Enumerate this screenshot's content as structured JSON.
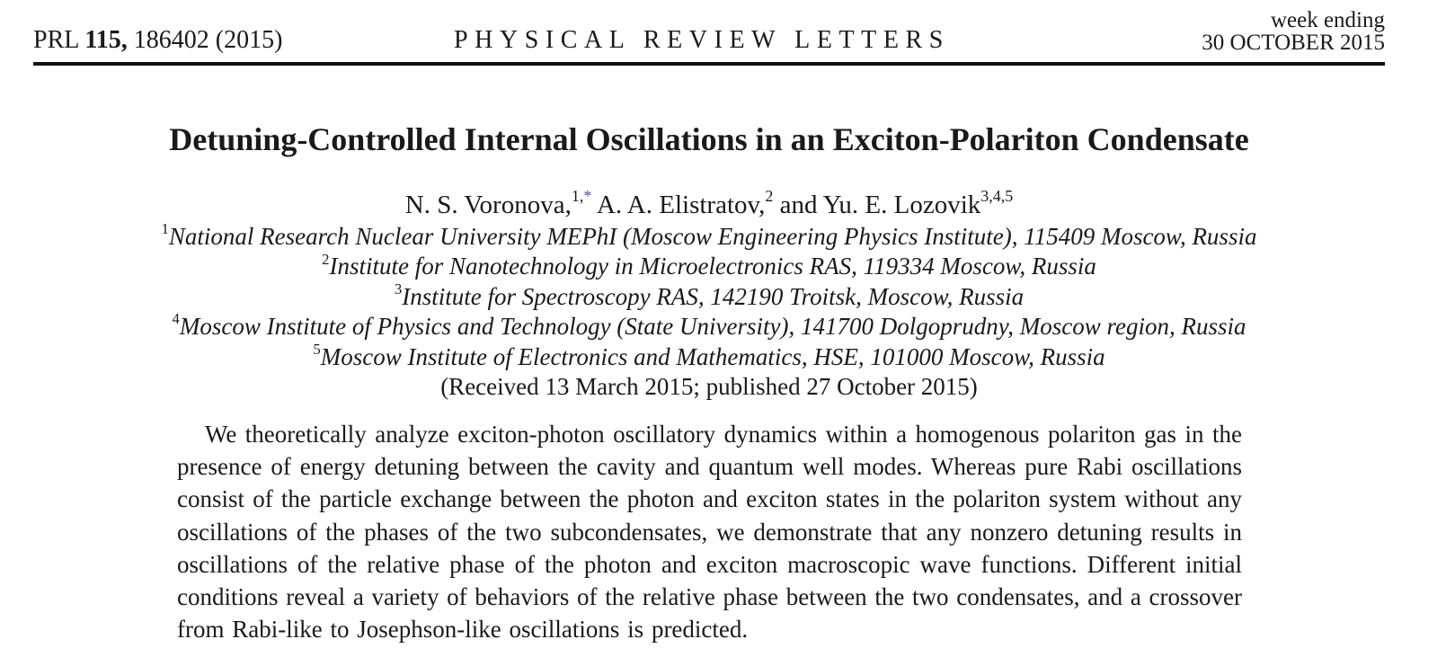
{
  "header": {
    "journal_prefix": "PRL",
    "volume": "115,",
    "citation": "186402 (2015)",
    "journal": "PHYSICAL REVIEW LETTERS",
    "week_label": "week ending",
    "date": "30 OCTOBER 2015"
  },
  "title": "Detuning-Controlled Internal Oscillations in an Exciton-Polariton Condensate",
  "authors": [
    {
      "name": "N. S. Voronova,",
      "sup": "1,",
      "note": "*"
    },
    {
      "name": "A. A. Elistratov,",
      "sup": "2"
    },
    {
      "conjunction": "and"
    },
    {
      "name": "Yu. E. Lozovik",
      "sup": "3,4,5"
    }
  ],
  "affiliations": [
    {
      "sup": "1",
      "text": "National Research Nuclear University MEPhI (Moscow Engineering Physics Institute), 115409 Moscow, Russia"
    },
    {
      "sup": "2",
      "text": "Institute for Nanotechnology in Microelectronics RAS, 119334 Moscow, Russia"
    },
    {
      "sup": "3",
      "text": "Institute for Spectroscopy RAS, 142190 Troitsk, Moscow, Russia"
    },
    {
      "sup": "4",
      "text": "Moscow Institute of Physics and Technology (State University), 141700 Dolgoprudny, Moscow region, Russia"
    },
    {
      "sup": "5",
      "text": "Moscow Institute of Electronics and Mathematics, HSE, 101000 Moscow, Russia"
    }
  ],
  "received": "(Received 13 March 2015; published 27 October 2015)",
  "abstract": {
    "lines": [
      "We theoretically analyze exciton-photon oscillatory dynamics within a homogenous polariton gas in the",
      "presence of energy detuning between the cavity and quantum well modes. Whereas pure Rabi oscillations",
      "consist of the particle exchange between the photon and exciton states in the polariton system without any",
      "oscillations of the phases of the two subcondensates, we demonstrate that any nonzero detuning results in",
      "oscillations of the relative phase of the photon and exciton macroscopic wave functions. Different initial",
      "conditions reveal a variety of behaviors of the relative phase between the two condensates, and a crossover",
      "from Rabi-like to Josephson-like oscillations is predicted."
    ]
  }
}
